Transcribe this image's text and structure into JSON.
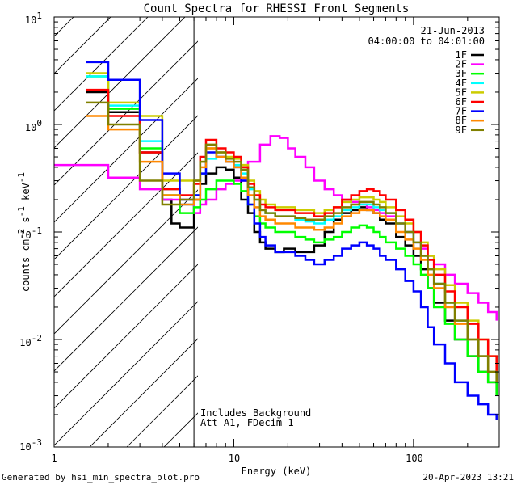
{
  "chart_data": {
    "type": "line",
    "title": "Count Spectra for RHESSI Front Segments",
    "xlabel": "Energy (keV)",
    "ylabel_parts": [
      "counts cm",
      "-2",
      " s",
      "-1",
      " keV",
      "-1"
    ],
    "x_scale": "log",
    "y_scale": "log",
    "xlim": [
      1,
      300
    ],
    "ylim": [
      0.001,
      10
    ],
    "x_ticks": [
      {
        "value": 1,
        "label": "1"
      },
      {
        "value": 10,
        "label": "10"
      },
      {
        "value": 100,
        "label": "100"
      }
    ],
    "y_ticks": [
      {
        "value": 10,
        "base": "10",
        "exp": "1"
      },
      {
        "value": 1,
        "base": "10",
        "exp": "0"
      },
      {
        "value": 0.1,
        "base": "10",
        "exp": "-1"
      },
      {
        "value": 0.01,
        "base": "10",
        "exp": "-2"
      },
      {
        "value": 0.001,
        "base": "10",
        "exp": "-3"
      }
    ],
    "date": "21-Jun-2013",
    "time_range": "04:00:00 to 04:01:00",
    "attenuator_boundary_kev": 6,
    "annotations": [
      "Includes Background",
      "Att A1, FDecim  1"
    ],
    "series": [
      {
        "name": "1F",
        "color": "#000000",
        "x": [
          1.5,
          2,
          3,
          4,
          4.5,
          5,
          6,
          6.5,
          7,
          8,
          9,
          10,
          11,
          12,
          13,
          14,
          15,
          17,
          19,
          22,
          25,
          28,
          32,
          36,
          40,
          45,
          50,
          55,
          60,
          65,
          70,
          80,
          90,
          100,
          110,
          120,
          130,
          150,
          170,
          200,
          230,
          260,
          290
        ],
        "y": [
          2,
          1.3,
          0.55,
          0.2,
          0.12,
          0.11,
          0.2,
          0.28,
          0.35,
          0.4,
          0.38,
          0.32,
          0.2,
          0.15,
          0.1,
          0.08,
          0.07,
          0.065,
          0.07,
          0.065,
          0.065,
          0.075,
          0.1,
          0.13,
          0.15,
          0.16,
          0.17,
          0.16,
          0.15,
          0.13,
          0.12,
          0.09,
          0.075,
          0.06,
          0.045,
          0.03,
          0.022,
          0.015,
          0.01,
          0.007,
          0.005,
          0.004,
          0.003
        ]
      },
      {
        "name": "2F",
        "color": "#ff00ff",
        "x": [
          1,
          2,
          3,
          4,
          5,
          6,
          6.5,
          7,
          8,
          9,
          10,
          12,
          14,
          16,
          18,
          20,
          22,
          25,
          28,
          32,
          36,
          40,
          45,
          50,
          55,
          60,
          65,
          70,
          80,
          90,
          100,
          110,
          120,
          130,
          150,
          170,
          200,
          230,
          260,
          290
        ],
        "y": [
          0.42,
          0.32,
          0.25,
          0.2,
          0.18,
          0.15,
          0.18,
          0.2,
          0.25,
          0.28,
          0.3,
          0.45,
          0.65,
          0.78,
          0.75,
          0.6,
          0.5,
          0.4,
          0.3,
          0.25,
          0.22,
          0.2,
          0.19,
          0.18,
          0.17,
          0.16,
          0.15,
          0.14,
          0.12,
          0.1,
          0.08,
          0.07,
          0.06,
          0.05,
          0.04,
          0.033,
          0.027,
          0.022,
          0.018,
          0.015
        ]
      },
      {
        "name": "3F",
        "color": "#00ff00",
        "x": [
          1.5,
          2,
          3,
          4,
          5,
          6,
          6.5,
          7,
          8,
          9,
          10,
          11,
          12,
          13,
          14,
          15,
          17,
          19,
          22,
          25,
          28,
          32,
          36,
          40,
          45,
          50,
          55,
          60,
          65,
          70,
          80,
          90,
          100,
          110,
          120,
          130,
          150,
          170,
          200,
          230,
          260,
          290
        ],
        "y": [
          2.8,
          1.4,
          0.6,
          0.22,
          0.15,
          0.17,
          0.2,
          0.25,
          0.3,
          0.3,
          0.28,
          0.24,
          0.18,
          0.14,
          0.12,
          0.11,
          0.1,
          0.1,
          0.09,
          0.085,
          0.08,
          0.085,
          0.09,
          0.1,
          0.11,
          0.115,
          0.11,
          0.1,
          0.09,
          0.08,
          0.07,
          0.06,
          0.05,
          0.04,
          0.03,
          0.02,
          0.014,
          0.01,
          0.007,
          0.005,
          0.004,
          0.003
        ]
      },
      {
        "name": "4F",
        "color": "#00ffff",
        "x": [
          1.5,
          2,
          3,
          4,
          5,
          6,
          6.5,
          7,
          8,
          9,
          10,
          11,
          12,
          13,
          14,
          15,
          17,
          19,
          22,
          25,
          28,
          32,
          36,
          40,
          45,
          50,
          55,
          60,
          65,
          70,
          80,
          90,
          100,
          110,
          120,
          130,
          150,
          170,
          200,
          230,
          260,
          290
        ],
        "y": [
          2.8,
          1.5,
          0.7,
          0.25,
          0.18,
          0.22,
          0.35,
          0.48,
          0.5,
          0.45,
          0.42,
          0.35,
          0.25,
          0.2,
          0.16,
          0.15,
          0.14,
          0.14,
          0.13,
          0.125,
          0.12,
          0.13,
          0.14,
          0.16,
          0.17,
          0.18,
          0.18,
          0.17,
          0.16,
          0.15,
          0.12,
          0.1,
          0.08,
          0.06,
          0.045,
          0.033,
          0.022,
          0.015,
          0.01,
          0.007,
          0.005,
          0.004
        ]
      },
      {
        "name": "5F",
        "color": "#cccc00",
        "x": [
          1.5,
          2,
          3,
          4,
          5,
          6,
          6.5,
          7,
          8,
          9,
          10,
          11,
          12,
          13,
          14,
          15,
          17,
          19,
          22,
          25,
          28,
          32,
          36,
          40,
          45,
          50,
          55,
          60,
          65,
          70,
          80,
          90,
          100,
          110,
          120,
          130,
          150,
          170,
          200,
          230,
          260,
          290
        ],
        "y": [
          3,
          1.6,
          1.2,
          0.3,
          0.3,
          0.3,
          0.45,
          0.6,
          0.55,
          0.5,
          0.48,
          0.42,
          0.3,
          0.24,
          0.2,
          0.18,
          0.17,
          0.17,
          0.16,
          0.16,
          0.15,
          0.16,
          0.17,
          0.19,
          0.2,
          0.21,
          0.21,
          0.2,
          0.19,
          0.17,
          0.14,
          0.12,
          0.1,
          0.08,
          0.06,
          0.045,
          0.032,
          0.022,
          0.015,
          0.01,
          0.007,
          0.005
        ]
      },
      {
        "name": "6F",
        "color": "#ff0000",
        "x": [
          1.5,
          2,
          3,
          4,
          5,
          6,
          6.5,
          7,
          8,
          9,
          10,
          11,
          12,
          13,
          14,
          15,
          17,
          19,
          22,
          25,
          28,
          32,
          36,
          40,
          45,
          50,
          55,
          60,
          65,
          70,
          80,
          90,
          100,
          110,
          120,
          130,
          150,
          170,
          200,
          230,
          260,
          290
        ],
        "y": [
          2.1,
          1.2,
          0.55,
          0.25,
          0.22,
          0.28,
          0.5,
          0.72,
          0.6,
          0.55,
          0.5,
          0.4,
          0.28,
          0.22,
          0.18,
          0.17,
          0.16,
          0.16,
          0.15,
          0.15,
          0.14,
          0.15,
          0.17,
          0.2,
          0.22,
          0.24,
          0.25,
          0.24,
          0.22,
          0.2,
          0.16,
          0.13,
          0.1,
          0.075,
          0.055,
          0.04,
          0.028,
          0.02,
          0.014,
          0.01,
          0.007,
          0.005
        ]
      },
      {
        "name": "7F",
        "color": "#0000ff",
        "x": [
          1.5,
          2,
          3,
          4,
          5,
          6,
          6.5,
          7,
          8,
          9,
          10,
          11,
          12,
          13,
          14,
          15,
          17,
          19,
          22,
          25,
          28,
          32,
          36,
          40,
          45,
          50,
          55,
          60,
          65,
          70,
          80,
          90,
          100,
          110,
          120,
          130,
          150,
          170,
          200,
          230,
          260,
          290
        ],
        "y": [
          3.8,
          2.6,
          1.1,
          0.35,
          0.2,
          0.22,
          0.35,
          0.55,
          0.5,
          0.45,
          0.4,
          0.3,
          0.18,
          0.12,
          0.09,
          0.075,
          0.065,
          0.065,
          0.06,
          0.055,
          0.05,
          0.055,
          0.06,
          0.07,
          0.075,
          0.08,
          0.075,
          0.07,
          0.06,
          0.055,
          0.045,
          0.035,
          0.028,
          0.02,
          0.013,
          0.009,
          0.006,
          0.004,
          0.003,
          0.0025,
          0.002,
          0.0018
        ]
      },
      {
        "name": "8F",
        "color": "#ff8800",
        "x": [
          1.5,
          2,
          3,
          4,
          5,
          6,
          6.5,
          7,
          8,
          9,
          10,
          11,
          12,
          13,
          14,
          15,
          17,
          19,
          22,
          25,
          28,
          32,
          36,
          40,
          45,
          50,
          55,
          60,
          65,
          70,
          80,
          90,
          100,
          110,
          120,
          130,
          150,
          170,
          200,
          230,
          260,
          290
        ],
        "y": [
          1.2,
          0.9,
          0.45,
          0.22,
          0.18,
          0.2,
          0.4,
          0.6,
          0.5,
          0.45,
          0.4,
          0.32,
          0.22,
          0.17,
          0.14,
          0.13,
          0.12,
          0.12,
          0.11,
          0.11,
          0.105,
          0.11,
          0.12,
          0.14,
          0.15,
          0.16,
          0.16,
          0.15,
          0.14,
          0.13,
          0.1,
          0.085,
          0.07,
          0.055,
          0.04,
          0.03,
          0.02,
          0.014,
          0.01,
          0.007,
          0.005,
          0.004
        ]
      },
      {
        "name": "9F",
        "color": "#808000",
        "x": [
          1.5,
          2,
          3,
          4,
          5,
          6,
          6.5,
          7,
          8,
          9,
          10,
          11,
          12,
          13,
          14,
          15,
          17,
          19,
          22,
          25,
          28,
          32,
          36,
          40,
          45,
          50,
          55,
          60,
          65,
          70,
          80,
          90,
          100,
          110,
          120,
          130,
          150,
          170,
          200,
          230,
          260,
          290
        ],
        "y": [
          1.6,
          1,
          0.3,
          0.18,
          0.2,
          0.3,
          0.45,
          0.65,
          0.55,
          0.48,
          0.45,
          0.38,
          0.26,
          0.2,
          0.16,
          0.15,
          0.14,
          0.14,
          0.135,
          0.13,
          0.13,
          0.14,
          0.15,
          0.17,
          0.18,
          0.19,
          0.19,
          0.18,
          0.17,
          0.15,
          0.12,
          0.1,
          0.08,
          0.06,
          0.045,
          0.033,
          0.022,
          0.015,
          0.01,
          0.007,
          0.005,
          0.004
        ]
      }
    ]
  },
  "footer": {
    "generated_by": "Generated by hsi_min_spectra_plot.pro",
    "timestamp": "20-Apr-2023 13:21"
  }
}
